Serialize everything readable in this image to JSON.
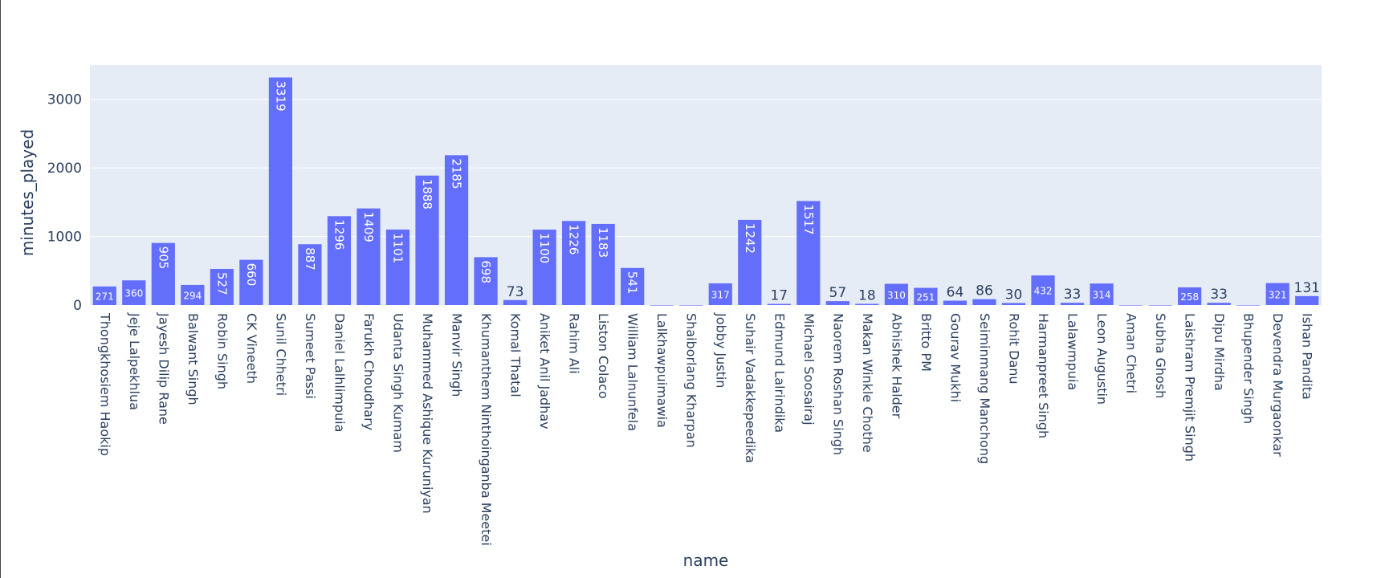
{
  "chart_data": {
    "type": "bar",
    "xlabel": "name",
    "ylabel": "minutes_played",
    "ylim": [
      0,
      3500
    ],
    "yticks": [
      0,
      1000,
      2000,
      3000
    ],
    "grid": true,
    "colors": {
      "bar": "#636efa",
      "plot_bg": "#e5ecf6",
      "grid": "#ffffff",
      "text": "#2a3f5f"
    },
    "categories": [
      "Thongkhosiem Haokip",
      "Jeje Lalpekhlua",
      "Jayesh Dilip Rane",
      "Balwant Singh",
      "Robin Singh",
      "CK Vineeth",
      "Sunil Chhetri",
      "Sumeet Passi",
      "Daniel Lalhlimpuia",
      "Farukh Choudhary",
      "Udanta Singh Kumam",
      "Muhammed Ashique Kuruniyan",
      "Manvir Singh",
      "Khumanthem Ninthoinganba Meetei",
      "Komal Thatal",
      "Aniket Anil Jadhav",
      "Rahim Ali",
      "Liston Colaco",
      "William Lalnunfela",
      "Lalkhawpuimawia",
      "Shaiborlang Kharpan",
      "Jobby Justin",
      "Suhair Vadakkepeedika",
      "Edmund Lalrindika",
      "Michael Soosairaj",
      "Naorem Roshan Singh",
      "Makan Winkle Chothe",
      "Abhishek Halder",
      "Britto PM",
      "Gourav Mukhi",
      "Seiminmang Manchong",
      "Rohit Danu",
      "Harmanpreet Singh",
      "Lalawmpuia",
      "Leon Augustin",
      "Aman Chetri",
      "Subha Ghosh",
      "Laishram Premjit Singh",
      "Dipu Mirdha",
      "Bhupender Singh",
      "Devendra Murgaonkar",
      "Ishan Pandita"
    ],
    "values": [
      271,
      360,
      905,
      294,
      527,
      660,
      3319,
      887,
      1296,
      1409,
      1101,
      1888,
      2185,
      698,
      73,
      1100,
      1226,
      1183,
      541,
      0,
      0,
      317,
      1242,
      17,
      1517,
      57,
      18,
      310,
      251,
      64,
      86,
      30,
      432,
      33,
      314,
      0,
      0,
      258,
      33,
      0,
      321,
      131
    ],
    "data_labels": [
      "271",
      "360",
      "905",
      "294",
      "527",
      "660",
      "3319",
      "887",
      "1296",
      "1409",
      "1101",
      "1888",
      "2185",
      "698",
      "73",
      "1100",
      "1226",
      "1183",
      "541",
      "",
      "",
      "317",
      "1242",
      "17",
      "1517",
      "57",
      "18",
      "310",
      "251",
      "64",
      "86",
      "30",
      "432",
      "33",
      "314",
      "",
      "",
      "258",
      "33",
      "",
      "321",
      "131"
    ]
  }
}
